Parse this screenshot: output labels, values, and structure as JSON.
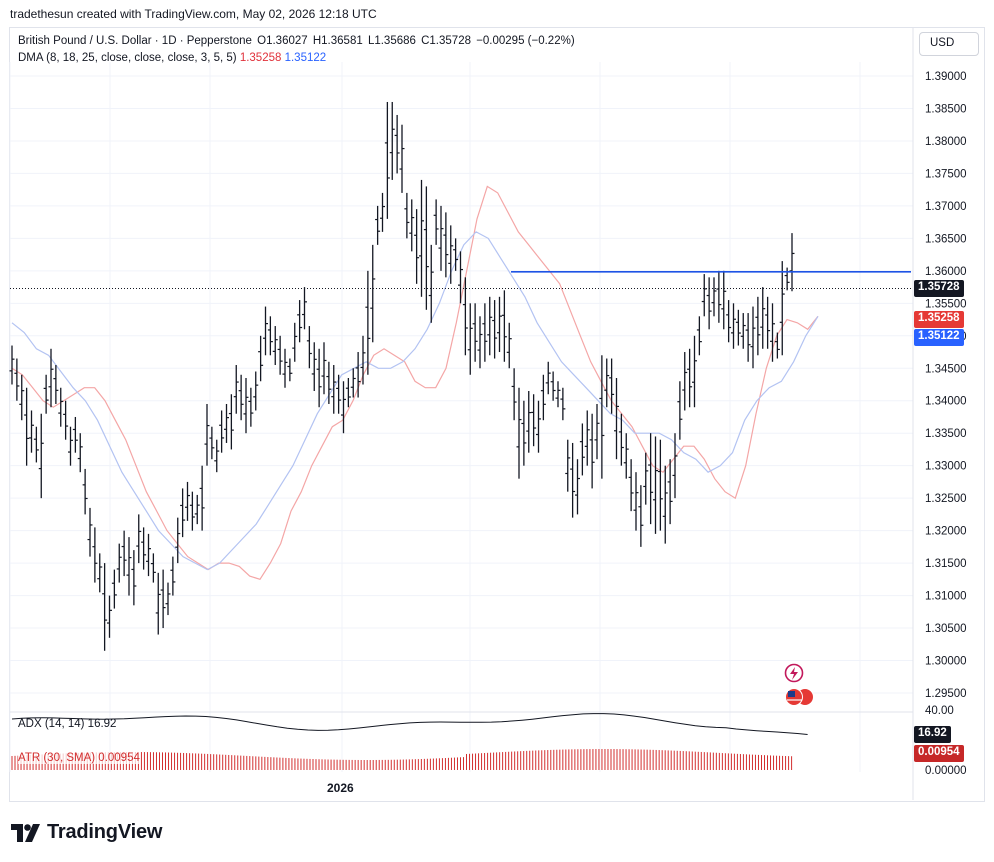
{
  "header": {
    "text": "tradethesun created with TradingView.com, May 02, 2026 12:18 UTC"
  },
  "legend": {
    "symbol": "British Pound / U.S. Dollar · 1D · Pepperstone",
    "open": "O1.36027",
    "high": "H1.36581",
    "low": "L1.35686",
    "close": "C1.35728",
    "change": "−0.00295 (−0.22%)",
    "dma_label": "DMA (8, 18, 25, close, close, close, 3, 5, 5)",
    "dma_value1": "1.35258",
    "dma_value2": "1.35122"
  },
  "currency_button": "USD",
  "badges": {
    "last_price": "1.35728",
    "dma1": "1.35258",
    "dma2": "1.35122",
    "adx": "16.92",
    "atr": "0.00954"
  },
  "adx_label": "ADX (14, 14)  16.92",
  "atr_label": "ATR (30, SMA)  0.00954",
  "xaxis": {
    "label": "2026"
  },
  "branding": "TradingView",
  "colors": {
    "bars": "#131722",
    "dma_fast": "#f4a6a6",
    "dma_slow": "#b3c3f2",
    "horizontal_line": "#1e53e5",
    "last_price_badge": "#131722",
    "dma1_badge": "#e53935",
    "dma2_badge": "#2962ff",
    "atr": "#d32f2f",
    "adx_badge": "#131722",
    "atr_badge": "#c62828"
  },
  "chart_data": {
    "type": "ohlc-bar",
    "title": "British Pound / U.S. Dollar · 1D · Pepperstone",
    "ylim": [
      1.293,
      1.391
    ],
    "y_ticks": [
      "1.39000",
      "1.38500",
      "1.38000",
      "1.37500",
      "1.37000",
      "1.36500",
      "1.36000",
      "1.35500",
      "1.35000",
      "1.34500",
      "1.34000",
      "1.33500",
      "1.33000",
      "1.32500",
      "1.32000",
      "1.31500",
      "1.31000",
      "1.30500",
      "1.30000",
      "1.29500"
    ],
    "horizontal_line_level": 1.35985,
    "last_price": 1.35728,
    "bars_hl": [
      [
        1.3485,
        1.3425
      ],
      [
        1.3465,
        1.34
      ],
      [
        1.344,
        1.337
      ],
      [
        1.342,
        1.33
      ],
      [
        1.3385,
        1.332
      ],
      [
        1.336,
        1.3305
      ],
      [
        1.338,
        1.325
      ],
      [
        1.344,
        1.338
      ],
      [
        1.348,
        1.339
      ],
      [
        1.3455,
        1.3395
      ],
      [
        1.342,
        1.336
      ],
      [
        1.34,
        1.334
      ],
      [
        1.336,
        1.33
      ],
      [
        1.3375,
        1.332
      ],
      [
        1.335,
        1.329
      ],
      [
        1.3295,
        1.3225
      ],
      [
        1.3235,
        1.316
      ],
      [
        1.3205,
        1.312
      ],
      [
        1.3165,
        1.3105
      ],
      [
        1.315,
        1.3015
      ],
      [
        1.31,
        1.3035
      ],
      [
        1.314,
        1.308
      ],
      [
        1.318,
        1.312
      ],
      [
        1.32,
        1.313
      ],
      [
        1.319,
        1.31
      ],
      [
        1.317,
        1.3085
      ],
      [
        1.3225,
        1.315
      ],
      [
        1.3205,
        1.314
      ],
      [
        1.3195,
        1.313
      ],
      [
        1.3165,
        1.312
      ],
      [
        1.3135,
        1.304
      ],
      [
        1.314,
        1.305
      ],
      [
        1.312,
        1.307
      ],
      [
        1.316,
        1.31
      ],
      [
        1.322,
        1.315
      ],
      [
        1.3265,
        1.319
      ],
      [
        1.3275,
        1.3215
      ],
      [
        1.326,
        1.32
      ],
      [
        1.3255,
        1.321
      ],
      [
        1.33,
        1.32
      ],
      [
        1.3395,
        1.33
      ],
      [
        1.336,
        1.331
      ],
      [
        1.334,
        1.329
      ],
      [
        1.3385,
        1.332
      ],
      [
        1.3395,
        1.3335
      ],
      [
        1.341,
        1.3325
      ],
      [
        1.3455,
        1.338
      ],
      [
        1.344,
        1.337
      ],
      [
        1.3435,
        1.335
      ],
      [
        1.342,
        1.336
      ],
      [
        1.3445,
        1.3385
      ],
      [
        1.35,
        1.343
      ],
      [
        1.3545,
        1.347
      ],
      [
        1.353,
        1.347
      ],
      [
        1.3515,
        1.3455
      ],
      [
        1.35,
        1.344
      ],
      [
        1.348,
        1.342
      ],
      [
        1.3465,
        1.343
      ],
      [
        1.352,
        1.346
      ],
      [
        1.3555,
        1.349
      ],
      [
        1.3575,
        1.351
      ],
      [
        1.3515,
        1.345
      ],
      [
        1.349,
        1.3415
      ],
      [
        1.348,
        1.339
      ],
      [
        1.349,
        1.341
      ],
      [
        1.346,
        1.3395
      ],
      [
        1.3455,
        1.338
      ],
      [
        1.344,
        1.338
      ],
      [
        1.343,
        1.335
      ],
      [
        1.3435,
        1.339
      ],
      [
        1.345,
        1.3405
      ],
      [
        1.3475,
        1.3405
      ],
      [
        1.35,
        1.3425
      ],
      [
        1.36,
        1.344
      ],
      [
        1.364,
        1.349
      ],
      [
        1.37,
        1.364
      ],
      [
        1.372,
        1.366
      ],
      [
        1.386,
        1.368
      ],
      [
        1.386,
        1.374
      ],
      [
        1.384,
        1.375
      ],
      [
        1.3825,
        1.372
      ],
      [
        1.372,
        1.365
      ],
      [
        1.371,
        1.363
      ],
      [
        1.3695,
        1.358
      ],
      [
        1.374,
        1.356
      ],
      [
        1.373,
        1.354
      ],
      [
        1.364,
        1.352
      ],
      [
        1.371,
        1.364
      ],
      [
        1.37,
        1.36
      ],
      [
        1.369,
        1.359
      ],
      [
        1.367,
        1.358
      ],
      [
        1.365,
        1.36
      ],
      [
        1.363,
        1.355
      ],
      [
        1.359,
        1.347
      ],
      [
        1.355,
        1.344
      ],
      [
        1.355,
        1.346
      ],
      [
        1.353,
        1.345
      ],
      [
        1.355,
        1.346
      ],
      [
        1.356,
        1.347
      ],
      [
        1.3555,
        1.3465
      ],
      [
        1.356,
        1.3475
      ],
      [
        1.357,
        1.346
      ],
      [
        1.352,
        1.345
      ],
      [
        1.345,
        1.337
      ],
      [
        1.342,
        1.328
      ],
      [
        1.34,
        1.33
      ],
      [
        1.3415,
        1.332
      ],
      [
        1.341,
        1.333
      ],
      [
        1.34,
        1.332
      ],
      [
        1.344,
        1.337
      ],
      [
        1.346,
        1.341
      ],
      [
        1.3445,
        1.34
      ],
      [
        1.343,
        1.339
      ],
      [
        1.342,
        1.337
      ],
      [
        1.334,
        1.326
      ],
      [
        1.3335,
        1.322
      ],
      [
        1.331,
        1.3225
      ],
      [
        1.3365,
        1.3285
      ],
      [
        1.3385,
        1.33
      ],
      [
        1.338,
        1.3265
      ],
      [
        1.3395,
        1.331
      ],
      [
        1.347,
        1.328
      ],
      [
        1.3465,
        1.339
      ],
      [
        1.3465,
        1.338
      ],
      [
        1.3435,
        1.331
      ],
      [
        1.338,
        1.33
      ],
      [
        1.335,
        1.328
      ],
      [
        1.331,
        1.323
      ],
      [
        1.329,
        1.32
      ],
      [
        1.327,
        1.3175
      ],
      [
        1.332,
        1.324
      ],
      [
        1.335,
        1.321
      ],
      [
        1.3345,
        1.3195
      ],
      [
        1.334,
        1.32
      ],
      [
        1.33,
        1.318
      ],
      [
        1.331,
        1.321
      ],
      [
        1.335,
        1.325
      ],
      [
        1.343,
        1.334
      ],
      [
        1.3475,
        1.3385
      ],
      [
        1.348,
        1.339
      ],
      [
        1.35,
        1.339
      ],
      [
        1.353,
        1.347
      ],
      [
        1.3595,
        1.353
      ],
      [
        1.359,
        1.351
      ],
      [
        1.359,
        1.353
      ],
      [
        1.36,
        1.352
      ],
      [
        1.36,
        1.351
      ],
      [
        1.3555,
        1.349
      ],
      [
        1.355,
        1.348
      ],
      [
        1.354,
        1.3485
      ],
      [
        1.3535,
        1.348
      ],
      [
        1.3535,
        1.346
      ],
      [
        1.3545,
        1.345
      ],
      [
        1.356,
        1.347
      ],
      [
        1.3575,
        1.348
      ],
      [
        1.356,
        1.348
      ],
      [
        1.355,
        1.346
      ],
      [
        1.3505,
        1.3465
      ],
      [
        1.3615,
        1.347
      ],
      [
        1.3605,
        1.357
      ],
      [
        1.36581,
        1.35686
      ]
    ],
    "dma_fast": [
      1.345,
      1.344,
      1.342,
      1.34,
      1.339,
      1.34,
      1.341,
      1.342,
      1.342,
      1.34,
      1.337,
      1.334,
      1.33,
      1.326,
      1.323,
      1.32,
      1.318,
      1.316,
      1.315,
      1.314,
      1.315,
      1.315,
      1.3145,
      1.313,
      1.3125,
      1.315,
      1.318,
      1.323,
      1.326,
      1.33,
      1.333,
      1.336,
      1.337,
      1.34,
      1.344,
      1.347,
      1.348,
      1.347,
      1.346,
      1.343,
      1.342,
      1.342,
      1.345,
      1.352,
      1.36,
      1.368,
      1.373,
      1.372,
      1.369,
      1.366,
      1.364,
      1.362,
      1.36,
      1.358,
      1.354,
      1.35,
      1.346,
      1.343,
      1.34,
      1.338,
      1.336,
      1.333,
      1.33,
      1.329,
      1.331,
      1.333,
      1.333,
      1.331,
      1.328,
      1.326,
      1.325,
      1.33,
      1.338,
      1.345,
      1.35,
      1.3525,
      1.352,
      1.351,
      1.353
    ],
    "dma_slow": [
      1.352,
      1.3505,
      1.348,
      1.347,
      1.3445,
      1.342,
      1.34,
      1.337,
      1.333,
      1.329,
      1.326,
      1.323,
      1.32,
      1.318,
      1.316,
      1.315,
      1.314,
      1.315,
      1.317,
      1.319,
      1.321,
      1.324,
      1.327,
      1.33,
      1.334,
      1.338,
      1.341,
      1.344,
      1.345,
      1.346,
      1.345,
      1.345,
      1.346,
      1.348,
      1.351,
      1.355,
      1.36,
      1.364,
      1.366,
      1.365,
      1.362,
      1.359,
      1.356,
      1.352,
      1.349,
      1.346,
      1.344,
      1.342,
      1.34,
      1.338,
      1.337,
      1.335,
      1.335,
      1.335,
      1.334,
      1.332,
      1.331,
      1.329,
      1.33,
      1.332,
      1.337,
      1.34,
      1.342,
      1.343,
      1.346,
      1.35,
      1.353
    ]
  }
}
